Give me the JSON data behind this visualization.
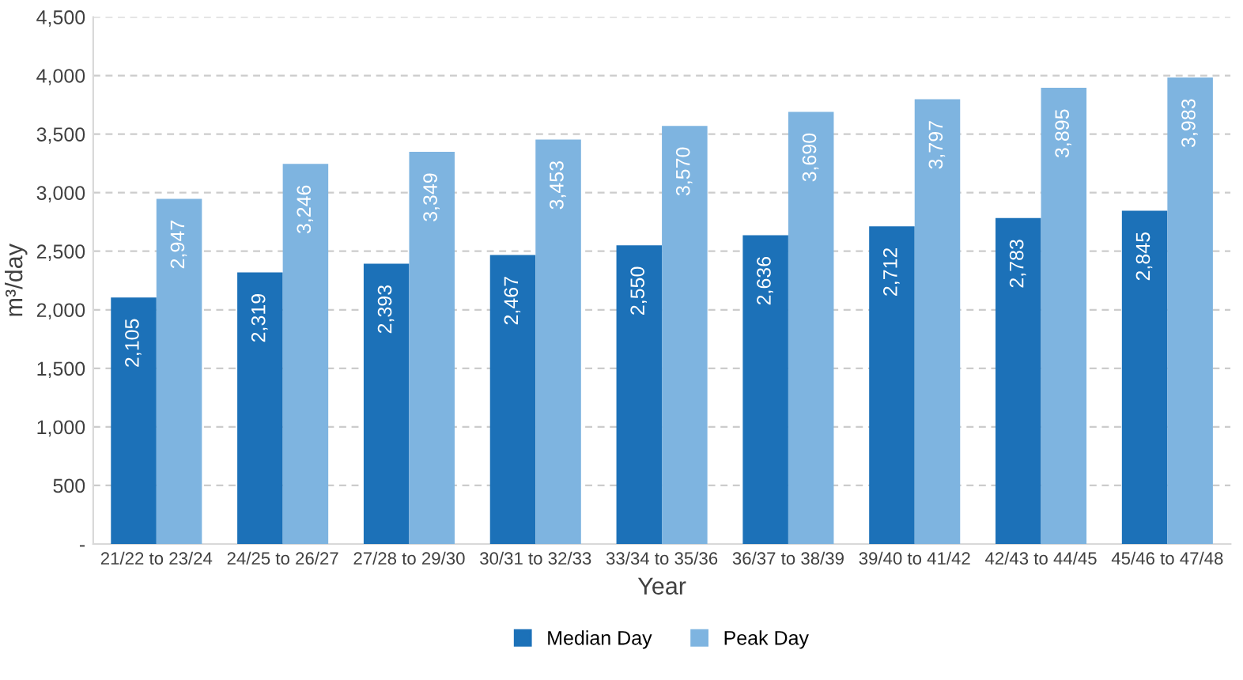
{
  "chart_data": {
    "type": "bar",
    "xlabel": "Year",
    "ylabel": "m³/day",
    "categories": [
      "21/22 to 23/24",
      "24/25 to 26/27",
      "27/28 to 29/30",
      "30/31 to 32/33",
      "33/34 to 35/36",
      "36/37 to 38/39",
      "39/40 to 41/42",
      "42/43 to 44/45",
      "45/46 to 47/48"
    ],
    "series": [
      {
        "name": "Median Day",
        "color": "#1c71b8",
        "values": [
          2105,
          2319,
          2393,
          2467,
          2550,
          2636,
          2712,
          2783,
          2845
        ],
        "value_labels": [
          "2,105",
          "2,319",
          "2,393",
          "2,467",
          "2,550",
          "2,636",
          "2,712",
          "2,783",
          "2,845"
        ]
      },
      {
        "name": "Peak Day",
        "color": "#7eb4e0",
        "values": [
          2947,
          3246,
          3349,
          3453,
          3570,
          3690,
          3797,
          3895,
          3983
        ],
        "value_labels": [
          "2,947",
          "3,246",
          "3,349",
          "3,453",
          "3,570",
          "3,690",
          "3,797",
          "3,895",
          "3,983"
        ]
      }
    ],
    "ylim": [
      0,
      4500
    ],
    "yticks": [
      {
        "value": 0,
        "label": "-"
      },
      {
        "value": 500,
        "label": "500"
      },
      {
        "value": 1000,
        "label": "1,000"
      },
      {
        "value": 1500,
        "label": "1,500"
      },
      {
        "value": 2000,
        "label": "2,000"
      },
      {
        "value": 2500,
        "label": "2,500"
      },
      {
        "value": 3000,
        "label": "3,000"
      },
      {
        "value": 3500,
        "label": "3,500"
      },
      {
        "value": 4000,
        "label": "4,000"
      },
      {
        "value": 4500,
        "label": "4,500"
      }
    ],
    "grid": "y",
    "legend": "bottom"
  }
}
